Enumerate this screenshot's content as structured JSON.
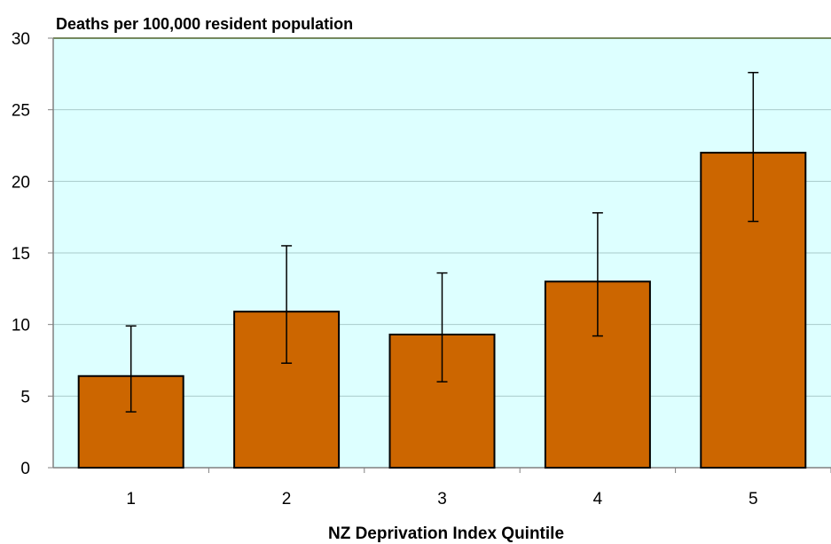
{
  "chart_data": {
    "type": "bar",
    "title": "Deaths per 100,000 resident population",
    "xlabel": "NZ Deprivation Index Quintile",
    "ylabel": "",
    "categories": [
      "1",
      "2",
      "3",
      "4",
      "5"
    ],
    "values": [
      6.4,
      10.9,
      9.3,
      13.0,
      22.0
    ],
    "error_low": [
      3.9,
      7.3,
      6.0,
      9.2,
      17.2
    ],
    "error_high": [
      9.9,
      15.5,
      13.6,
      17.8,
      27.6
    ],
    "ylim": [
      0,
      30
    ],
    "yticks": [
      "0",
      "5",
      "10",
      "15",
      "20",
      "25",
      "30"
    ],
    "grid": true,
    "colors": {
      "bar": "#CC6600",
      "plot_background": "#DDFFFF",
      "gridline": "#A9CBCB",
      "axis": "#808080",
      "top_border": "#4F6228"
    }
  }
}
